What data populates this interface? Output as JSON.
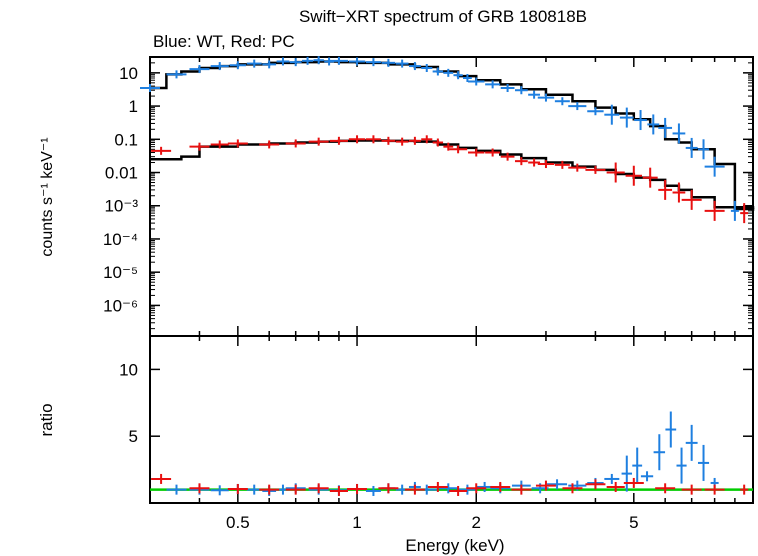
{
  "title": "Swift−XRT spectrum of GRB 180818B",
  "subtitle": "Blue: WT, Red: PC",
  "colors": {
    "wt": "#1e7fe0",
    "pc": "#e81010",
    "model": "#000000",
    "unity": "#00cc00",
    "axes": "#000000"
  },
  "chart_data": [
    {
      "type": "scatter",
      "panel": "spectrum",
      "xlabel": "Energy (keV)",
      "ylabel": "counts s⁻¹ keV⁻¹",
      "xscale": "log",
      "yscale": "log",
      "xlim": [
        0.3,
        10
      ],
      "ylim": [
        1.2e-07,
        30
      ],
      "x_ticks": [
        "0.5",
        "1",
        "2",
        "5"
      ],
      "x_tick_values": [
        0.5,
        1,
        2,
        5
      ],
      "y_ticks": [
        "10",
        "1",
        "0.1",
        "0.01",
        "10⁻³",
        "10⁻⁴",
        "10⁻⁵",
        "10⁻⁶"
      ],
      "y_tick_values": [
        10,
        1,
        0.1,
        0.01,
        0.001,
        0.0001,
        1e-05,
        1e-06
      ],
      "series": [
        {
          "name": "WT",
          "color": "#1e7fe0",
          "points": [
            [
              0.3,
              3.5
            ],
            [
              0.35,
              9
            ],
            [
              0.4,
              13
            ],
            [
              0.45,
              16
            ],
            [
              0.5,
              17
            ],
            [
              0.55,
              19
            ],
            [
              0.6,
              18
            ],
            [
              0.65,
              22
            ],
            [
              0.7,
              21
            ],
            [
              0.75,
              23
            ],
            [
              0.8,
              24
            ],
            [
              0.85,
              22
            ],
            [
              0.9,
              23
            ],
            [
              1.0,
              22
            ],
            [
              1.1,
              21
            ],
            [
              1.2,
              20
            ],
            [
              1.3,
              19
            ],
            [
              1.4,
              16
            ],
            [
              1.5,
              14
            ],
            [
              1.6,
              11
            ],
            [
              1.7,
              10
            ],
            [
              1.8,
              8.5
            ],
            [
              1.9,
              7
            ],
            [
              2.0,
              5.5
            ],
            [
              2.2,
              4.5
            ],
            [
              2.4,
              3.5
            ],
            [
              2.6,
              3
            ],
            [
              2.8,
              2.2
            ],
            [
              3.0,
              1.8
            ],
            [
              3.3,
              1.4
            ],
            [
              3.6,
              1.0
            ],
            [
              4.0,
              0.7
            ],
            [
              4.4,
              0.55
            ],
            [
              4.8,
              0.45
            ],
            [
              5.2,
              0.38
            ],
            [
              5.6,
              0.28
            ],
            [
              6.0,
              0.22
            ],
            [
              6.5,
              0.15
            ],
            [
              7.0,
              0.055
            ],
            [
              7.5,
              0.05
            ],
            [
              8.0,
              0.015
            ],
            [
              9.0,
              0.0007
            ]
          ]
        },
        {
          "name": "PC",
          "color": "#e81010",
          "points": [
            [
              0.32,
              0.045
            ],
            [
              0.4,
              0.06
            ],
            [
              0.45,
              0.07
            ],
            [
              0.5,
              0.075
            ],
            [
              0.6,
              0.07
            ],
            [
              0.7,
              0.075
            ],
            [
              0.8,
              0.085
            ],
            [
              0.9,
              0.09
            ],
            [
              1.0,
              0.1
            ],
            [
              1.1,
              0.1
            ],
            [
              1.2,
              0.09
            ],
            [
              1.3,
              0.085
            ],
            [
              1.4,
              0.09
            ],
            [
              1.5,
              0.1
            ],
            [
              1.6,
              0.08
            ],
            [
              1.7,
              0.06
            ],
            [
              1.8,
              0.05
            ],
            [
              2.0,
              0.04
            ],
            [
              2.2,
              0.04
            ],
            [
              2.4,
              0.03
            ],
            [
              2.6,
              0.022
            ],
            [
              2.8,
              0.02
            ],
            [
              3.0,
              0.018
            ],
            [
              3.3,
              0.017
            ],
            [
              3.6,
              0.014
            ],
            [
              4.0,
              0.012
            ],
            [
              4.5,
              0.01
            ],
            [
              5.0,
              0.008
            ],
            [
              5.5,
              0.007
            ],
            [
              6.0,
              0.003
            ],
            [
              6.5,
              0.0025
            ],
            [
              7.0,
              0.0015
            ],
            [
              8.0,
              0.0007
            ],
            [
              9.5,
              0.0006
            ]
          ]
        }
      ],
      "models": [
        {
          "name": "WT model",
          "color": "#000000",
          "steps": [
            [
              0.3,
              3.5
            ],
            [
              0.33,
              9
            ],
            [
              0.36,
              11
            ],
            [
              0.4,
              14
            ],
            [
              0.45,
              16
            ],
            [
              0.5,
              18
            ],
            [
              0.6,
              20
            ],
            [
              0.7,
              21
            ],
            [
              0.8,
              22
            ],
            [
              0.9,
              21
            ],
            [
              1.0,
              20
            ],
            [
              1.2,
              18
            ],
            [
              1.4,
              15
            ],
            [
              1.6,
              11
            ],
            [
              1.8,
              8
            ],
            [
              2.0,
              6
            ],
            [
              2.3,
              4.5
            ],
            [
              2.6,
              3.2
            ],
            [
              3.0,
              2.2
            ],
            [
              3.5,
              1.4
            ],
            [
              4.0,
              0.9
            ],
            [
              4.5,
              0.6
            ],
            [
              5.0,
              0.4
            ],
            [
              5.5,
              0.25
            ],
            [
              6.0,
              0.1
            ],
            [
              6.5,
              0.08
            ],
            [
              7.0,
              0.05
            ],
            [
              8.0,
              0.018
            ],
            [
              9.0,
              0.0008
            ],
            [
              10,
              0.0007
            ]
          ]
        },
        {
          "name": "PC model",
          "color": "#000000",
          "steps": [
            [
              0.3,
              0.025
            ],
            [
              0.36,
              0.03
            ],
            [
              0.4,
              0.06
            ],
            [
              0.5,
              0.07
            ],
            [
              0.6,
              0.075
            ],
            [
              0.7,
              0.08
            ],
            [
              0.8,
              0.085
            ],
            [
              0.9,
              0.09
            ],
            [
              1.0,
              0.092
            ],
            [
              1.2,
              0.09
            ],
            [
              1.4,
              0.085
            ],
            [
              1.6,
              0.07
            ],
            [
              1.8,
              0.055
            ],
            [
              2.0,
              0.045
            ],
            [
              2.3,
              0.035
            ],
            [
              2.6,
              0.027
            ],
            [
              3.0,
              0.02
            ],
            [
              3.5,
              0.015
            ],
            [
              4.0,
              0.012
            ],
            [
              4.5,
              0.009
            ],
            [
              5.0,
              0.007
            ],
            [
              5.5,
              0.006
            ],
            [
              6.0,
              0.004
            ],
            [
              6.5,
              0.003
            ],
            [
              7.0,
              0.0018
            ],
            [
              8.0,
              0.0009
            ],
            [
              10,
              0.0008
            ]
          ]
        }
      ]
    },
    {
      "type": "scatter",
      "panel": "ratio",
      "xlabel": "Energy (keV)",
      "ylabel": "ratio",
      "xscale": "log",
      "xlim": [
        0.3,
        10
      ],
      "ylim": [
        0,
        12.5
      ],
      "y_ticks": [
        "10",
        "5"
      ],
      "y_tick_values": [
        10,
        5
      ],
      "reference_line": 1,
      "series": [
        {
          "name": "WT",
          "color": "#1e7fe0",
          "points": [
            [
              0.35,
              1.0
            ],
            [
              0.4,
              1.0
            ],
            [
              0.45,
              0.95
            ],
            [
              0.5,
              1.05
            ],
            [
              0.55,
              1.0
            ],
            [
              0.6,
              0.9
            ],
            [
              0.65,
              1.0
            ],
            [
              0.7,
              1.1
            ],
            [
              0.8,
              1.0
            ],
            [
              0.9,
              0.95
            ],
            [
              1.0,
              1.05
            ],
            [
              1.1,
              0.9
            ],
            [
              1.2,
              1.1
            ],
            [
              1.3,
              1.0
            ],
            [
              1.4,
              1.2
            ],
            [
              1.5,
              1.0
            ],
            [
              1.7,
              1.1
            ],
            [
              1.9,
              1.0
            ],
            [
              2.1,
              1.2
            ],
            [
              2.3,
              1.1
            ],
            [
              2.6,
              1.3
            ],
            [
              2.9,
              1.1
            ],
            [
              3.2,
              1.4
            ],
            [
              3.6,
              1.3
            ],
            [
              4.0,
              1.5
            ],
            [
              4.4,
              1.8
            ],
            [
              4.8,
              2.2
            ],
            [
              5.1,
              2.8
            ],
            [
              5.4,
              2.0
            ],
            [
              5.8,
              3.8
            ],
            [
              6.2,
              5.5
            ],
            [
              6.6,
              2.8
            ],
            [
              7.0,
              4.5
            ],
            [
              7.5,
              3.0
            ],
            [
              8.0,
              1.5
            ]
          ]
        },
        {
          "name": "PC",
          "color": "#e81010",
          "points": [
            [
              0.32,
              1.8
            ],
            [
              0.4,
              1.1
            ],
            [
              0.5,
              1.05
            ],
            [
              0.6,
              1.0
            ],
            [
              0.7,
              1.0
            ],
            [
              0.8,
              1.1
            ],
            [
              0.9,
              0.9
            ],
            [
              1.0,
              1.05
            ],
            [
              1.2,
              1.1
            ],
            [
              1.4,
              1.0
            ],
            [
              1.6,
              1.2
            ],
            [
              1.8,
              0.9
            ],
            [
              2.0,
              1.1
            ],
            [
              2.3,
              1.2
            ],
            [
              2.6,
              1.0
            ],
            [
              3.0,
              1.3
            ],
            [
              3.5,
              1.1
            ],
            [
              4.0,
              1.4
            ],
            [
              4.5,
              1.2
            ],
            [
              5.0,
              1.5
            ],
            [
              6.0,
              1.1
            ],
            [
              7.0,
              1.0
            ],
            [
              8.0,
              1.0
            ],
            [
              9.5,
              1.0
            ]
          ]
        }
      ]
    }
  ]
}
